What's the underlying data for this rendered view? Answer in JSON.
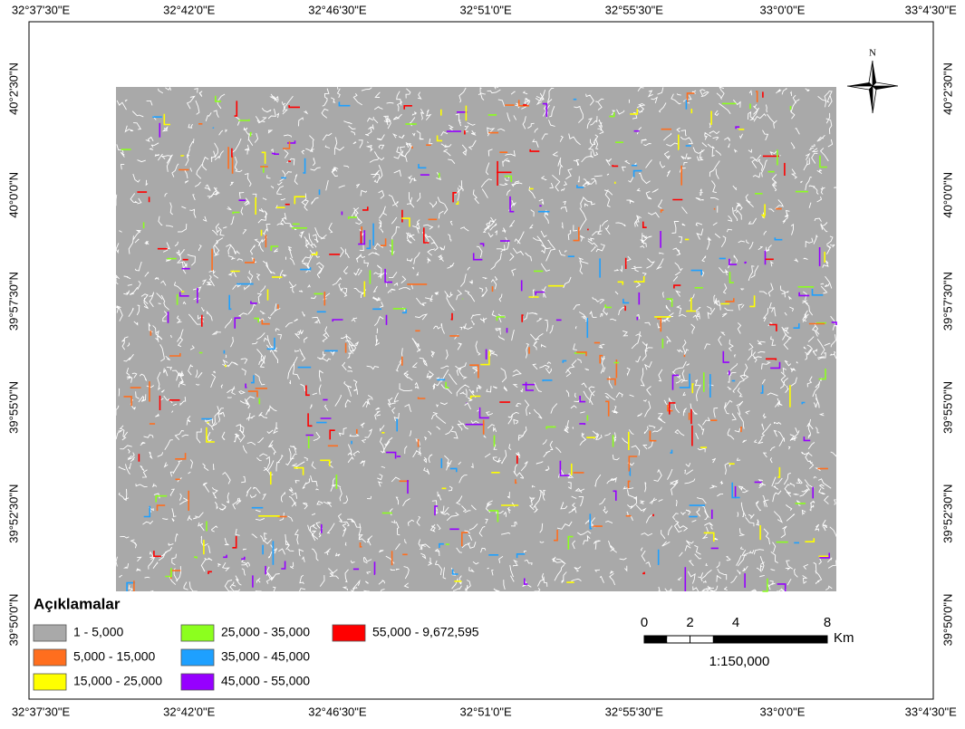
{
  "map": {
    "top_labels": [
      "32°37'30\"E",
      "32°42'0\"E",
      "32°46'30\"E",
      "32°51'0\"E",
      "32°55'30\"E",
      "33°0'0\"E",
      "33°4'30\"E"
    ],
    "bottom_labels": [
      "32°37'30\"E",
      "32°42'0\"E",
      "32°46'30\"E",
      "32°51'0\"E",
      "32°55'30\"E",
      "33°0'0\"E",
      "33°4'30\"E"
    ],
    "left_labels": [
      "40°2'30\"N",
      "40°0'0\"N",
      "39°57'30\"N",
      "39°55'0\"N",
      "39°52'30\"N",
      "39°50'0\"N"
    ],
    "right_labels": [
      "40°2'30\"N",
      "40°0'0\"N",
      "39°57'30\"N",
      "39°55'0\"N",
      "39°52'30\"N",
      "39°50'0\"N"
    ],
    "north": "N",
    "legend": {
      "title": "Açıklamalar",
      "items": [
        {
          "label": "1 - 5,000",
          "color": "#a9a9a9"
        },
        {
          "label": "5,000 - 15,000",
          "color": "#ff6e1e"
        },
        {
          "label": "15,000 - 25,000",
          "color": "#ffff00"
        },
        {
          "label": "25,000 - 35,000",
          "color": "#8cff1e"
        },
        {
          "label": "35,000 - 45,000",
          "color": "#1ea0ff"
        },
        {
          "label": "45,000 - 55,000",
          "color": "#9600ff"
        },
        {
          "label": "55,000 - 9,672,595",
          "color": "#ff0000"
        }
      ]
    },
    "scale_bar": {
      "ticks": [
        0,
        2,
        4,
        8
      ],
      "unit": "Km",
      "ratio": "1:150,000"
    }
  }
}
